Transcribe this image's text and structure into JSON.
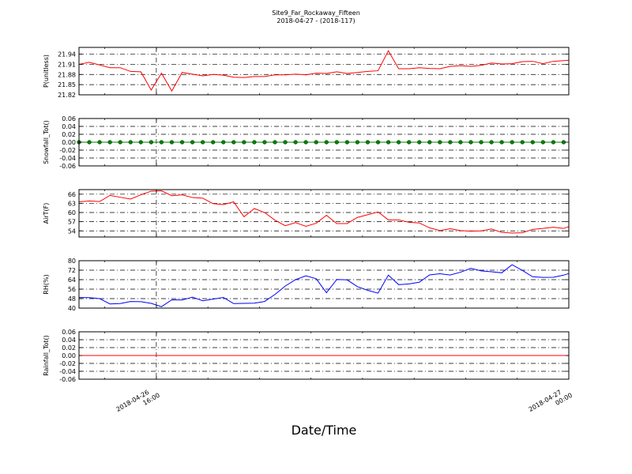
{
  "title": {
    "line1": "Site9_Far_Rockaway_Fifteen",
    "line2": "2018-04-27 - (2018-117)"
  },
  "xaxis": {
    "label": "Date/Time",
    "ticks": [
      {
        "x": 32,
        "line1": "2018-04-26",
        "line2": "16:00"
      },
      {
        "x": 96,
        "line1": "2018-04-27",
        "line2": "00:00"
      }
    ],
    "xlim": [
      20,
      96
    ]
  },
  "chart_data": [
    {
      "type": "line",
      "ylabel": "P(unitless)",
      "ylim": [
        21.82,
        21.96
      ],
      "yticks": [
        21.82,
        21.85,
        21.88,
        21.91,
        21.94
      ],
      "ytick_labels": [
        "21.82",
        "21.85",
        "21.88",
        "21.91",
        "21.94"
      ],
      "color": "#ff0000",
      "marker": "none",
      "x": [
        20.0,
        21.6,
        23.2,
        24.8,
        26.4,
        28.0,
        29.6,
        31.2,
        32.8,
        34.4,
        36.0,
        37.6,
        39.2,
        40.8,
        42.4,
        44.0,
        45.6,
        47.2,
        48.8,
        50.4,
        52.0,
        53.6,
        55.2,
        56.8,
        58.4,
        60.0,
        61.6,
        63.2,
        64.8,
        66.4,
        68.0,
        69.6,
        71.2,
        72.8,
        74.4,
        76.0,
        77.6,
        79.2,
        80.8,
        82.4,
        84.0,
        85.6,
        87.2,
        88.8,
        90.4,
        92.0,
        93.6,
        95.2,
        96.0
      ],
      "y": [
        21.91,
        21.916,
        21.908,
        21.9,
        21.9,
        21.889,
        21.888,
        21.834,
        21.884,
        21.831,
        21.886,
        21.881,
        21.876,
        21.88,
        21.878,
        21.872,
        21.871,
        21.874,
        21.874,
        21.879,
        21.879,
        21.881,
        21.879,
        21.884,
        21.883,
        21.888,
        21.883,
        21.886,
        21.889,
        21.891,
        21.95,
        21.897,
        21.897,
        21.9,
        21.898,
        21.897,
        21.904,
        21.906,
        21.904,
        21.907,
        21.914,
        21.911,
        21.912,
        21.918,
        21.919,
        21.912,
        21.919,
        21.921,
        21.922
      ]
    },
    {
      "type": "line",
      "ylabel": "Snowfall_Tot()",
      "ylim": [
        -0.06,
        0.06
      ],
      "yticks": [
        -0.06,
        -0.04,
        -0.02,
        0.0,
        0.02,
        0.04,
        0.06
      ],
      "ytick_labels": [
        "-0.06",
        "-0.04",
        "-0.02",
        "0.00",
        "0.02",
        "0.04",
        "0.06"
      ],
      "color": "#008000",
      "marker": "dot",
      "x": [
        20.0,
        21.6,
        23.2,
        24.8,
        26.4,
        28.0,
        29.6,
        31.2,
        32.8,
        34.4,
        36.0,
        37.6,
        39.2,
        40.8,
        42.4,
        44.0,
        45.6,
        47.2,
        48.8,
        50.4,
        52.0,
        53.6,
        55.2,
        56.8,
        58.4,
        60.0,
        61.6,
        63.2,
        64.8,
        66.4,
        68.0,
        69.6,
        71.2,
        72.8,
        74.4,
        76.0,
        77.6,
        79.2,
        80.8,
        82.4,
        84.0,
        85.6,
        87.2,
        88.8,
        90.4,
        92.0,
        93.6,
        95.2
      ],
      "y": [
        0,
        0,
        0,
        0,
        0,
        0,
        0,
        0,
        0,
        0,
        0,
        0,
        0,
        0,
        0,
        0,
        0,
        0,
        0,
        0,
        0,
        0,
        0,
        0,
        0,
        0,
        0,
        0,
        0,
        0,
        0,
        0,
        0,
        0,
        0,
        0,
        0,
        0,
        0,
        0,
        0,
        0,
        0,
        0,
        0,
        0,
        0,
        0
      ]
    },
    {
      "type": "line",
      "ylabel": "AirT(F)",
      "ylim": [
        52,
        67.5
      ],
      "yticks": [
        54,
        57,
        60,
        63,
        66
      ],
      "ytick_labels": [
        "54",
        "57",
        "60",
        "63",
        "66"
      ],
      "color": "#ff0000",
      "marker": "none",
      "x": [
        20.0,
        21.6,
        23.2,
        24.8,
        26.4,
        28.0,
        29.6,
        31.2,
        32.8,
        34.4,
        36.0,
        37.6,
        39.2,
        40.8,
        42.4,
        44.0,
        45.6,
        47.2,
        48.8,
        50.4,
        52.0,
        53.6,
        55.2,
        56.8,
        58.4,
        60.0,
        61.6,
        63.2,
        64.8,
        66.4,
        68.0,
        69.6,
        71.2,
        72.8,
        74.4,
        76.0,
        77.6,
        79.2,
        80.8,
        82.4,
        84.0,
        85.6,
        87.2,
        88.8,
        90.4,
        92.0,
        93.6,
        95.2,
        96.0
      ],
      "y": [
        63.5,
        63.8,
        63.6,
        65.6,
        65.0,
        64.4,
        65.8,
        67.0,
        67.1,
        65.5,
        65.8,
        64.9,
        64.7,
        62.9,
        62.6,
        63.5,
        58.6,
        61.3,
        60.0,
        57.5,
        55.7,
        56.7,
        55.5,
        56.5,
        59.1,
        56.4,
        56.4,
        58.4,
        59.3,
        60.2,
        57.6,
        57.6,
        56.8,
        56.6,
        55.0,
        54.1,
        54.7,
        54.1,
        53.9,
        54.0,
        54.6,
        53.5,
        53.3,
        53.4,
        54.5,
        54.8,
        55.2,
        54.8,
        55.4
      ]
    },
    {
      "type": "line",
      "ylabel": "RH(%)",
      "ylim": [
        40,
        80
      ],
      "yticks": [
        40,
        48,
        56,
        64,
        72,
        80
      ],
      "ytick_labels": [
        "40",
        "48",
        "56",
        "64",
        "72",
        "80"
      ],
      "color": "#0000ff",
      "marker": "none",
      "x": [
        20.0,
        21.6,
        23.2,
        24.8,
        26.4,
        28.0,
        29.6,
        31.2,
        32.8,
        34.4,
        36.0,
        37.6,
        39.2,
        40.8,
        42.4,
        44.0,
        45.6,
        47.2,
        48.8,
        50.4,
        52.0,
        53.6,
        55.2,
        56.8,
        58.4,
        60.0,
        61.6,
        63.2,
        64.8,
        66.4,
        68.0,
        69.6,
        71.2,
        72.8,
        74.4,
        76.0,
        77.6,
        79.2,
        80.8,
        82.4,
        84.0,
        85.6,
        87.2,
        88.8,
        90.4,
        92.0,
        93.6,
        95.2,
        96.0
      ],
      "y": [
        48.9,
        48.8,
        48.0,
        43.5,
        43.8,
        45.6,
        45.4,
        44.0,
        41.2,
        47.0,
        46.8,
        49.2,
        46.2,
        47.6,
        49.0,
        43.8,
        44.0,
        44.2,
        45.6,
        51.5,
        58.6,
        64.0,
        67.2,
        64.8,
        53.0,
        64.2,
        63.8,
        58.1,
        55.0,
        52.6,
        67.8,
        59.8,
        60.4,
        61.8,
        68.0,
        69.0,
        67.9,
        70.3,
        73.6,
        71.4,
        70.7,
        69.8,
        76.6,
        71.8,
        66.4,
        65.9,
        66.0,
        67.8,
        69.2
      ]
    },
    {
      "type": "line",
      "ylabel": "Rainfall_Tot()",
      "ylim": [
        -0.06,
        0.06
      ],
      "yticks": [
        -0.06,
        -0.04,
        -0.02,
        0.0,
        0.02,
        0.04,
        0.06
      ],
      "ytick_labels": [
        "-0.06",
        "-0.04",
        "-0.02",
        "0.00",
        "0.02",
        "0.04",
        "0.06"
      ],
      "color": "#ff0000",
      "marker": "none",
      "x": [
        20.0,
        96.0
      ],
      "y": [
        0,
        0
      ]
    }
  ]
}
